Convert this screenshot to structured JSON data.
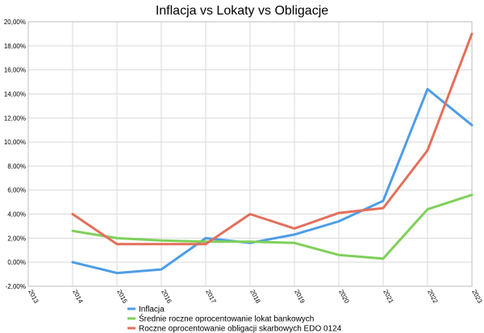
{
  "chart_data": {
    "type": "line",
    "title": "Inflacja vs Lokaty vs Obligacje",
    "xlabel": "",
    "ylabel": "",
    "x": [
      "2013",
      "2014",
      "2015",
      "2016",
      "2017",
      "2018",
      "2019",
      "2020",
      "2021",
      "2022",
      "2023"
    ],
    "ylim": [
      -2,
      20
    ],
    "yticks": [
      "-2,00%",
      "0,00%",
      "2,00%",
      "4,00%",
      "6,00%",
      "8,00%",
      "10,00%",
      "12,00%",
      "14,00%",
      "16,00%",
      "18,00%",
      "20,00%"
    ],
    "grid": true,
    "legend_position": "bottom",
    "series": [
      {
        "name": "Inflacja",
        "color": "#4e9de6",
        "values": [
          null,
          0.0,
          -0.9,
          -0.6,
          2.0,
          1.6,
          2.3,
          3.4,
          5.1,
          14.4,
          11.4
        ]
      },
      {
        "name": "Średnie roczne oprocentowanie lokat bankowych",
        "color": "#7fd05a",
        "values": [
          null,
          2.6,
          2.0,
          1.8,
          1.7,
          1.7,
          1.6,
          0.6,
          0.3,
          4.4,
          5.6
        ]
      },
      {
        "name": "Roczne oprocentowanie obligacji skarbowych EDO 0124",
        "color": "#e3705b",
        "values": [
          null,
          4.0,
          1.5,
          1.5,
          1.5,
          4.0,
          2.8,
          4.1,
          4.5,
          9.3,
          19.0
        ]
      }
    ]
  }
}
